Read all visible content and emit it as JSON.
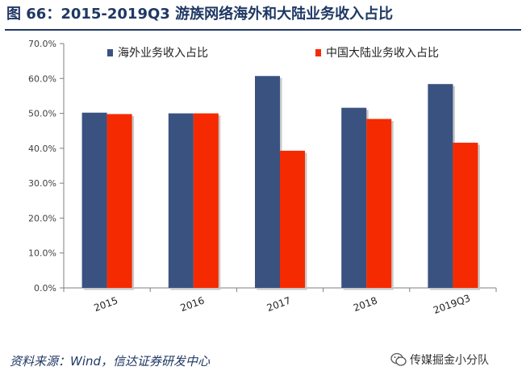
{
  "header": {
    "title": "图 66：2015-2019Q3 游族网络海外和大陆业务收入占比"
  },
  "chart_data": {
    "type": "bar",
    "categories": [
      "2015",
      "2016",
      "2017",
      "2018",
      "2019Q3"
    ],
    "series": [
      {
        "name": "海外业务收入占比",
        "values": [
          50.2,
          50.0,
          60.7,
          51.6,
          58.4
        ],
        "color": "#3a5280"
      },
      {
        "name": "中国大陆业务收入占比",
        "values": [
          49.8,
          50.0,
          39.3,
          48.4,
          41.6
        ],
        "color": "#f52a00"
      }
    ],
    "ylim": [
      0,
      70
    ],
    "yticks": [
      "0.0%",
      "10.0%",
      "20.0%",
      "30.0%",
      "40.0%",
      "50.0%",
      "60.0%",
      "70.0%"
    ],
    "legend_position": "top",
    "grid": false
  },
  "footer": {
    "source": "资料来源：Wind，信达证券研发中心",
    "watermark": "传媒掘金小分队"
  }
}
